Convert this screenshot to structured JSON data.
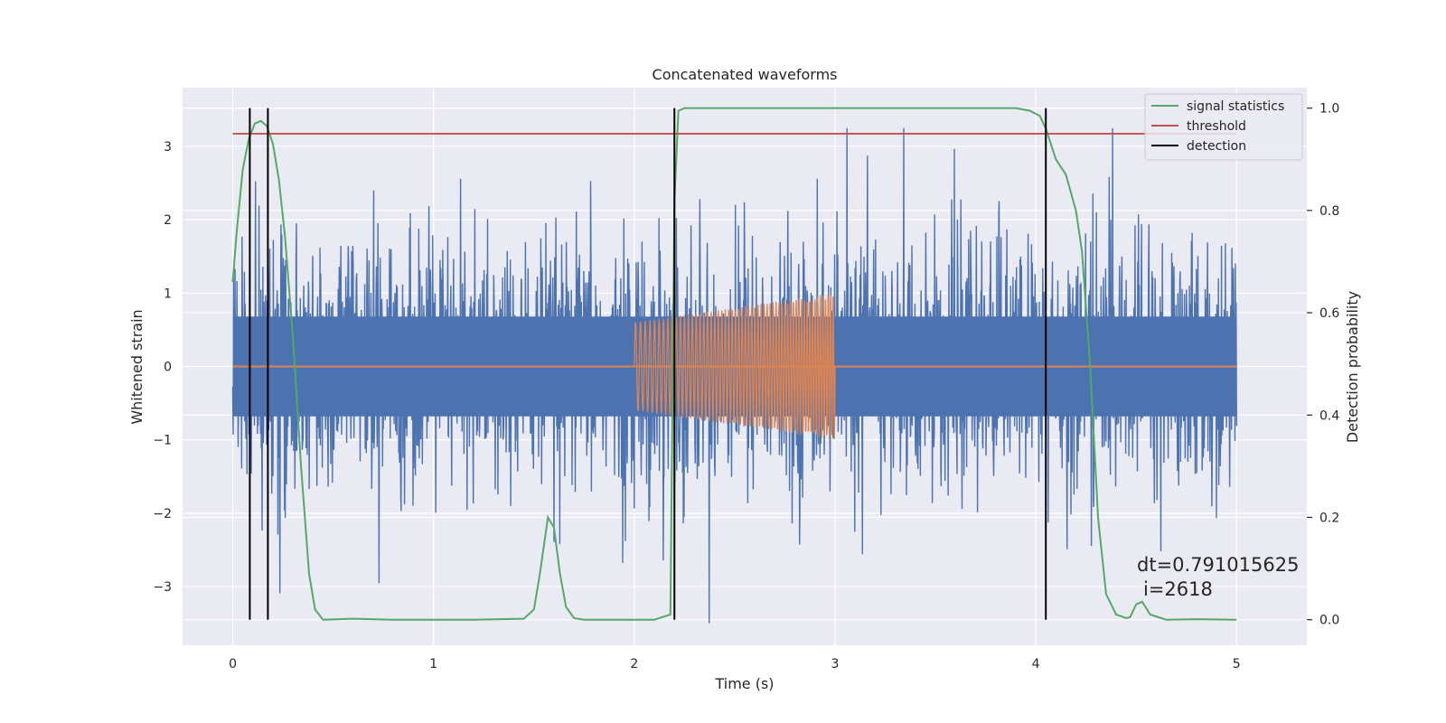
{
  "chart_data": {
    "type": "line",
    "title": "Concatenated waveforms",
    "xlabel": "Time (s)",
    "ylabel": "Whitened strain",
    "ylabel_right": "Detection probability",
    "xlim": [
      -0.25,
      5.35
    ],
    "ylim": [
      -3.8,
      3.8
    ],
    "ylim_right": [
      -0.05,
      1.04
    ],
    "x_ticks": [
      0,
      1,
      2,
      3,
      4,
      5
    ],
    "y_ticks": [
      -3,
      -2,
      -1,
      0,
      1,
      2,
      3
    ],
    "y_right_ticks": [
      0.0,
      0.2,
      0.4,
      0.6,
      0.8,
      1.0
    ],
    "x_tick_labels": [
      "0",
      "1",
      "2",
      "3",
      "4",
      "5"
    ],
    "y_tick_labels": [
      "−3",
      "−2",
      "−1",
      "0",
      "1",
      "2",
      "3"
    ],
    "y_right_tick_labels": [
      "0.0",
      "0.2",
      "0.4",
      "0.6",
      "0.8",
      "1.0"
    ],
    "grid": true,
    "legend_position": "top-right",
    "colors": {
      "background": "#eaeaf2",
      "grid": "#ffffff",
      "strain": "#4c72b0",
      "injection": "#dd8452",
      "signal_statistics": "#55a868",
      "threshold": "#c44e52",
      "detection": "#000000"
    },
    "legend": [
      {
        "label": "signal statistics",
        "color": "#55a868"
      },
      {
        "label": "threshold",
        "color": "#c44e52"
      },
      {
        "label": "detection",
        "color": "#000000"
      }
    ],
    "series": [
      {
        "axis": "left",
        "x_range": [
          0,
          5
        ],
        "y_amplitude_typical": 1.3,
        "y_peaks_range": [
          -3.5,
          3.25
        ],
        "color": "#4c72b0"
      },
      {
        "axis": "left",
        "x_range": [
          0,
          5
        ],
        "chirp_x_range": [
          2.0,
          3.0
        ],
        "chirp_amplitude": [
          0.6,
          1.0
        ],
        "color": "#dd8452"
      },
      {
        "name": "signal statistics",
        "axis": "right",
        "x": [
          0,
          0.02,
          0.05,
          0.08,
          0.11,
          0.14,
          0.17,
          0.2,
          0.23,
          0.26,
          0.3,
          0.34,
          0.38,
          0.41,
          0.45,
          0.6,
          0.8,
          1.0,
          1.2,
          1.45,
          1.5,
          1.53,
          1.57,
          1.6,
          1.63,
          1.66,
          1.7,
          1.75,
          1.9,
          2.1,
          2.18,
          2.2,
          2.22,
          2.25,
          2.3,
          2.5,
          3.0,
          3.5,
          3.9,
          3.97,
          4.02,
          4.05,
          4.1,
          4.15,
          4.2,
          4.23,
          4.27,
          4.31,
          4.35,
          4.4,
          4.45,
          4.47,
          4.5,
          4.53,
          4.57,
          4.65,
          4.8,
          5.0
        ],
        "y": [
          0.66,
          0.76,
          0.88,
          0.94,
          0.97,
          0.975,
          0.965,
          0.93,
          0.86,
          0.75,
          0.55,
          0.3,
          0.09,
          0.02,
          0.0,
          0.002,
          0.0,
          0.0,
          0.0,
          0.002,
          0.02,
          0.09,
          0.2,
          0.18,
          0.09,
          0.025,
          0.003,
          0.0,
          0.0,
          0.0,
          0.01,
          0.82,
          0.995,
          1.0,
          1.0,
          1.0,
          1.0,
          1.0,
          1.0,
          0.995,
          0.985,
          0.96,
          0.9,
          0.87,
          0.8,
          0.72,
          0.5,
          0.2,
          0.05,
          0.01,
          0.003,
          0.005,
          0.03,
          0.035,
          0.01,
          0.0,
          0.001,
          0.0
        ],
        "color": "#55a868"
      },
      {
        "name": "threshold",
        "axis": "right",
        "x": [
          0,
          5
        ],
        "y": [
          0.95,
          0.95
        ],
        "color": "#c44e52"
      },
      {
        "name": "detection",
        "axis": "right",
        "type": "vlines",
        "x": [
          0.085,
          0.175,
          2.2,
          4.05
        ],
        "y_range": [
          0.0,
          1.0
        ],
        "color": "#000000"
      }
    ],
    "annotations": {
      "dt": "dt=0.791015625",
      "i": "i=2618"
    }
  }
}
